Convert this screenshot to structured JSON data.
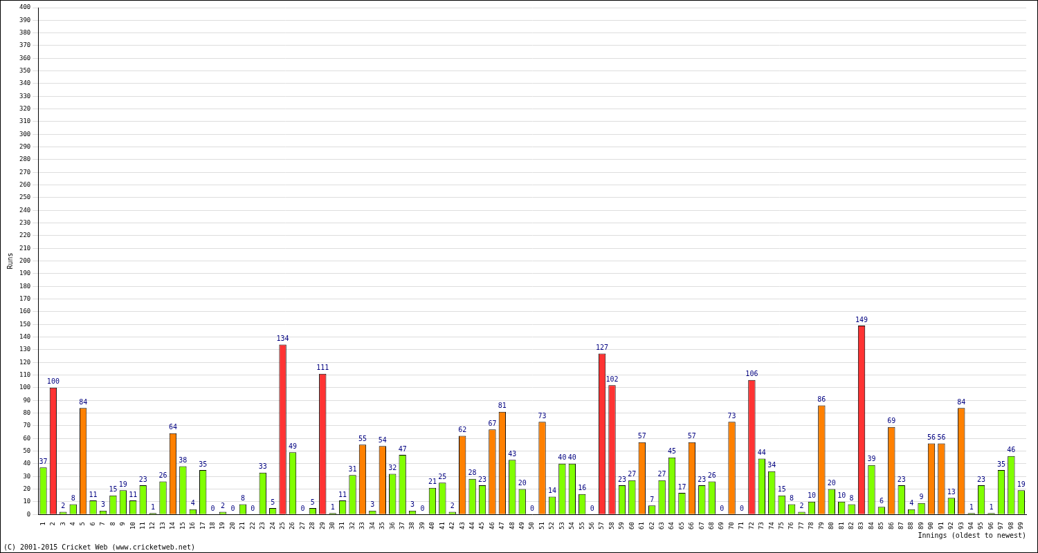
{
  "chart_data": {
    "type": "bar",
    "y_label": "Runs",
    "x_label": "Innings (oldest to newest)",
    "annotations": [
      "(C) 2001-2015 Cricket Web (www.cricketweb.net)"
    ],
    "categories": [
      1,
      2,
      3,
      4,
      5,
      6,
      7,
      8,
      9,
      10,
      11,
      12,
      13,
      14,
      15,
      16,
      17,
      18,
      19,
      20,
      21,
      22,
      23,
      24,
      25,
      26,
      27,
      28,
      29,
      30,
      31,
      32,
      33,
      34,
      35,
      36,
      37,
      38,
      39,
      40,
      41,
      42,
      43,
      44,
      45,
      46,
      47,
      48,
      49,
      50,
      51,
      52,
      53,
      54,
      55,
      56,
      57,
      58,
      59,
      60,
      61,
      62,
      63,
      64,
      65,
      66,
      67,
      68,
      69,
      70,
      71,
      72,
      73,
      74,
      75,
      76,
      77,
      78,
      79,
      80,
      81,
      82,
      83,
      84,
      85,
      86,
      87,
      88,
      89,
      90,
      91,
      92,
      93,
      94,
      95,
      96,
      97,
      98,
      99
    ],
    "values": [
      37,
      100,
      2,
      8,
      84,
      11,
      3,
      15,
      19,
      11,
      23,
      1,
      26,
      64,
      38,
      4,
      35,
      0,
      2,
      0,
      8,
      0,
      33,
      5,
      134,
      49,
      0,
      5,
      111,
      1,
      11,
      31,
      55,
      3,
      54,
      32,
      47,
      3,
      0,
      21,
      25,
      2,
      62,
      28,
      23,
      67,
      81,
      43,
      20,
      0,
      73,
      14,
      40,
      40,
      16,
      0,
      127,
      102,
      23,
      27,
      57,
      7,
      27,
      45,
      17,
      57,
      23,
      26,
      0,
      73,
      0,
      106,
      44,
      34,
      15,
      8,
      2,
      10,
      86,
      20,
      10,
      8,
      149,
      39,
      6,
      69,
      23,
      4,
      9,
      56,
      56,
      13,
      84,
      1,
      23,
      1,
      35,
      46,
      19
    ],
    "colors": [
      "#80ff00",
      "#ff3333",
      "#80ff00",
      "#80ff00",
      "#ff8000",
      "#80ff00",
      "#80ff00",
      "#80ff00",
      "#80ff00",
      "#80ff00",
      "#80ff00",
      "#80ff00",
      "#80ff00",
      "#ff8000",
      "#80ff00",
      "#80ff00",
      "#80ff00",
      "#80ff00",
      "#80ff00",
      "#80ff00",
      "#80ff00",
      "#80ff00",
      "#80ff00",
      "#80ff00",
      "#ff3333",
      "#80ff00",
      "#80ff00",
      "#80ff00",
      "#ff3333",
      "#80ff00",
      "#80ff00",
      "#80ff00",
      "#ff8000",
      "#80ff00",
      "#ff8000",
      "#80ff00",
      "#80ff00",
      "#80ff00",
      "#80ff00",
      "#80ff00",
      "#80ff00",
      "#80ff00",
      "#ff8000",
      "#80ff00",
      "#80ff00",
      "#ff8000",
      "#ff8000",
      "#80ff00",
      "#80ff00",
      "#80ff00",
      "#ff8000",
      "#80ff00",
      "#80ff00",
      "#80ff00",
      "#80ff00",
      "#80ff00",
      "#ff3333",
      "#ff3333",
      "#80ff00",
      "#80ff00",
      "#ff8000",
      "#80ff00",
      "#80ff00",
      "#80ff00",
      "#80ff00",
      "#ff8000",
      "#80ff00",
      "#80ff00",
      "#80ff00",
      "#ff8000",
      "#80ff00",
      "#ff3333",
      "#80ff00",
      "#80ff00",
      "#80ff00",
      "#80ff00",
      "#80ff00",
      "#80ff00",
      "#ff8000",
      "#80ff00",
      "#80ff00",
      "#80ff00",
      "#ff3333",
      "#80ff00",
      "#80ff00",
      "#ff8000",
      "#80ff00",
      "#80ff00",
      "#80ff00",
      "#ff8000",
      "#ff8000",
      "#80ff00",
      "#ff8000",
      "#80ff00",
      "#80ff00",
      "#80ff00",
      "#80ff00",
      "#80ff00",
      "#80ff00"
    ],
    "ylim": [
      0,
      400
    ],
    "yticks": [
      0,
      10,
      20,
      30,
      40,
      50,
      60,
      70,
      80,
      90,
      100,
      110,
      120,
      130,
      140,
      150,
      160,
      170,
      180,
      190,
      200,
      210,
      220,
      230,
      240,
      250,
      260,
      270,
      280,
      290,
      300,
      310,
      320,
      330,
      340,
      350,
      360,
      370,
      380,
      390,
      400
    ],
    "grid": true,
    "data_labels": true
  }
}
